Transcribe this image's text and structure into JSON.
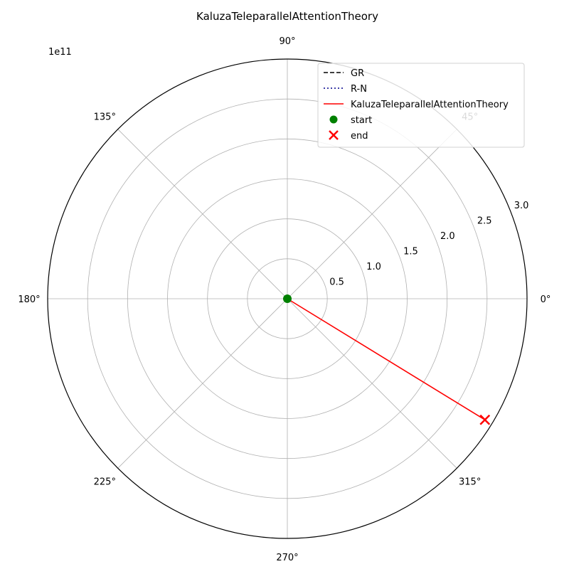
{
  "chart_data": {
    "type": "line",
    "projection": "polar",
    "title": "KaluzaTeleparallelAttentionTheory",
    "radial_scale_label": "1e11",
    "radial_unit_multiplier": 100000000000,
    "rlim": [
      0,
      3.0
    ],
    "radial_ticks": [
      0.5,
      1.0,
      1.5,
      2.0,
      2.5,
      3.0
    ],
    "radial_tick_labels": [
      "0.5",
      "1.0",
      "1.5",
      "2.0",
      "2.5",
      "3.0"
    ],
    "angular_ticks_deg": [
      0,
      45,
      90,
      135,
      180,
      225,
      270,
      315
    ],
    "angular_tick_labels": [
      "0°",
      "45°",
      "90°",
      "135°",
      "180°",
      "225°",
      "270°",
      "315°"
    ],
    "grid": true,
    "legend_position": "top-right",
    "series": [
      {
        "name": "GR",
        "style": "dashed",
        "color": "#000000",
        "points": []
      },
      {
        "name": "R-N",
        "style": "dotted",
        "color": "#00008b",
        "points": []
      },
      {
        "name": "KaluzaTeleparallelAttentionTheory",
        "style": "solid",
        "color": "#ff0000",
        "points": [
          {
            "theta_deg": 0,
            "r": 0.0
          },
          {
            "theta_deg": -31.5,
            "r": 2.9
          }
        ]
      }
    ],
    "markers": [
      {
        "name": "start",
        "shape": "circle",
        "color": "#008000",
        "theta_deg": 0,
        "r": 0.0
      },
      {
        "name": "end",
        "shape": "x",
        "color": "#ff0000",
        "theta_deg": -31.5,
        "r": 2.9
      }
    ]
  }
}
